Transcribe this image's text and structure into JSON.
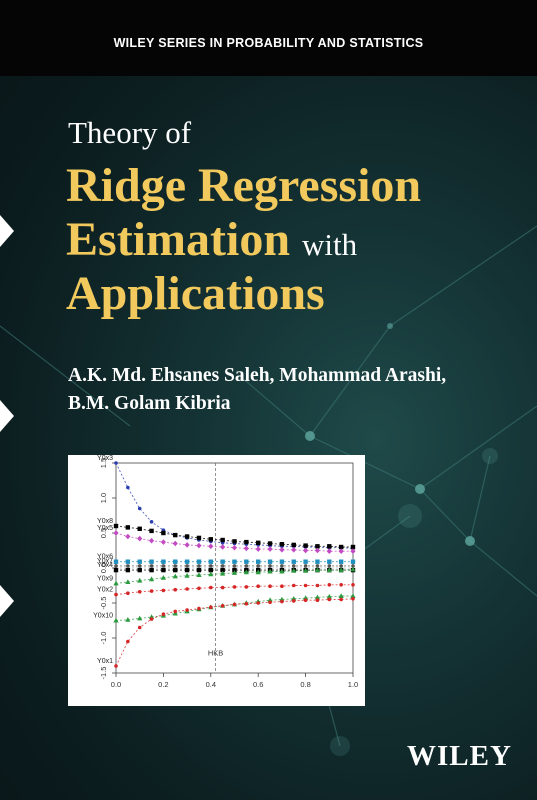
{
  "series_title": "WILEY SERIES IN PROBABILITY AND STATISTICS",
  "title": {
    "line1": "Theory of",
    "line2": "Ridge Regression",
    "line3_main": "Estimation",
    "line3_suffix": "with",
    "line4": "Applications"
  },
  "authors": {
    "line1": "A.K. Md. Ehsanes Saleh, Mohammad Arashi,",
    "line2": "B.M. Golam Kibria"
  },
  "publisher": "WILEY",
  "colors": {
    "title_gold": "#f2c95c",
    "background": "#143234",
    "top_band": "#050505"
  },
  "chart_data": {
    "type": "line",
    "title": "",
    "xlabel": "",
    "ylabel": "",
    "xlim": [
      0.0,
      1.0
    ],
    "ylim": [
      -1.5,
      1.5
    ],
    "xticks": [
      "0.0",
      "0.2",
      "0.4",
      "0.6",
      "0.8",
      "1.0"
    ],
    "yticks": [
      "-1.5",
      "-1.0",
      "-0.5",
      "0.0",
      "0.5",
      "1.0",
      "1.5"
    ],
    "vline": {
      "x": 0.42,
      "label": "HKB"
    },
    "x": [
      0,
      0.05,
      0.1,
      0.15,
      0.2,
      0.25,
      0.3,
      0.35,
      0.4,
      0.45,
      0.5,
      0.55,
      0.6,
      0.65,
      0.7,
      0.75,
      0.8,
      0.85,
      0.9,
      0.95,
      1.0
    ],
    "series": [
      {
        "name": "Y0x3",
        "color": "#2c3fb0",
        "marker": "circle",
        "values": [
          1.5,
          1.15,
          0.85,
          0.66,
          0.54,
          0.47,
          0.43,
          0.4,
          0.38,
          0.36,
          0.35,
          0.34,
          0.33,
          0.32,
          0.31,
          0.31,
          0.3,
          0.3,
          0.29,
          0.29,
          0.28
        ]
      },
      {
        "name": "Y0x8",
        "color": "#000000",
        "marker": "square",
        "values": [
          0.6,
          0.58,
          0.56,
          0.53,
          0.5,
          0.47,
          0.45,
          0.43,
          0.41,
          0.4,
          0.38,
          0.37,
          0.36,
          0.35,
          0.34,
          0.33,
          0.32,
          0.31,
          0.31,
          0.3,
          0.3
        ]
      },
      {
        "name": "Y0x5",
        "color": "#c24bc2",
        "marker": "diamond",
        "values": [
          0.5,
          0.45,
          0.42,
          0.39,
          0.37,
          0.35,
          0.33,
          0.32,
          0.31,
          0.3,
          0.29,
          0.28,
          0.27,
          0.27,
          0.26,
          0.26,
          0.25,
          0.25,
          0.24,
          0.24,
          0.24
        ]
      },
      {
        "name": "Y0x6",
        "color": "#1f8fbf",
        "marker": "square",
        "values": [
          0.09,
          0.09,
          0.09,
          0.09,
          0.09,
          0.09,
          0.09,
          0.09,
          0.09,
          0.09,
          0.09,
          0.09,
          0.09,
          0.09,
          0.09,
          0.09,
          0.09,
          0.09,
          0.09,
          0.09,
          0.09
        ]
      },
      {
        "name": "Y0x7",
        "color": "#555555",
        "marker": "circle",
        "values": [
          0.03,
          0.03,
          0.03,
          0.03,
          0.03,
          0.03,
          0.03,
          0.03,
          0.03,
          0.03,
          0.03,
          0.03,
          0.03,
          0.03,
          0.03,
          0.03,
          0.03,
          0.03,
          0.03,
          0.03,
          0.03
        ]
      },
      {
        "name": "Y0x4",
        "color": "#000000",
        "marker": "square",
        "values": [
          -0.03,
          -0.03,
          -0.03,
          -0.03,
          -0.03,
          -0.03,
          -0.03,
          -0.03,
          -0.03,
          -0.03,
          -0.03,
          -0.03,
          -0.03,
          -0.03,
          -0.03,
          -0.03,
          -0.03,
          -0.03,
          -0.03,
          -0.03,
          -0.03
        ]
      },
      {
        "name": "Y0x9",
        "color": "#2c9a3f",
        "marker": "triangle",
        "values": [
          -0.22,
          -0.2,
          -0.18,
          -0.16,
          -0.14,
          -0.12,
          -0.11,
          -0.1,
          -0.09,
          -0.08,
          -0.07,
          -0.06,
          -0.06,
          -0.05,
          -0.05,
          -0.04,
          -0.04,
          -0.03,
          -0.03,
          -0.03,
          -0.02
        ]
      },
      {
        "name": "Y0x2",
        "color": "#d62728",
        "marker": "circle",
        "values": [
          -0.38,
          -0.36,
          -0.34,
          -0.33,
          -0.32,
          -0.31,
          -0.3,
          -0.29,
          -0.28,
          -0.28,
          -0.27,
          -0.27,
          -0.26,
          -0.26,
          -0.26,
          -0.25,
          -0.25,
          -0.25,
          -0.24,
          -0.24,
          -0.24
        ]
      },
      {
        "name": "Y0x10",
        "color": "#2c9a3f",
        "marker": "triangle",
        "values": [
          -0.75,
          -0.74,
          -0.72,
          -0.7,
          -0.68,
          -0.65,
          -0.62,
          -0.59,
          -0.56,
          -0.54,
          -0.52,
          -0.5,
          -0.48,
          -0.46,
          -0.45,
          -0.44,
          -0.43,
          -0.42,
          -0.41,
          -0.4,
          -0.4
        ]
      },
      {
        "name": "Y0x1",
        "color": "#d62728",
        "marker": "circle",
        "values": [
          -1.4,
          -1.05,
          -0.85,
          -0.73,
          -0.66,
          -0.62,
          -0.6,
          -0.58,
          -0.56,
          -0.54,
          -0.52,
          -0.51,
          -0.5,
          -0.49,
          -0.48,
          -0.47,
          -0.46,
          -0.46,
          -0.45,
          -0.45,
          -0.44
        ]
      }
    ]
  }
}
